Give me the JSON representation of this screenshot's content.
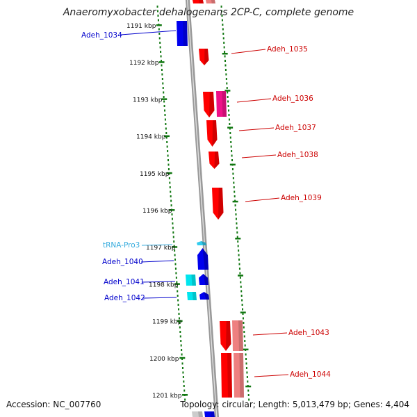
{
  "title": "Anaeromyxobacter dehalogenans 2CP-C, complete genome",
  "accession": "Accession: NC_007760",
  "topology": "Topology: circular; Length: 5,013,479 bp; Genes: 4,404",
  "colors": {
    "forward_gene": "#ff0000",
    "forward_pseudo": "#ee1188",
    "forward_light": "#ee8080",
    "reverse_gene": "#0000ee",
    "trna": "#33ccee",
    "cyan_block": "#00e5ee",
    "tick": "#117711",
    "backbone": "#999999",
    "forward_label": "#cc0000",
    "reverse_label": "#0000cc",
    "trna_label": "#33aadd"
  },
  "kbp_labels": [
    "1191 kbp",
    "1192 kbp",
    "1193 kbp",
    "1194 kbp",
    "1195 kbp",
    "1196 kbp",
    "1197 kbp",
    "1198 kbp",
    "1199 kbp",
    "1200 kbp",
    "1201 kbp"
  ],
  "genes": [
    {
      "label": "Adeh_1034",
      "strand": "reverse",
      "type": "gene"
    },
    {
      "label": "Adeh_1035",
      "strand": "forward",
      "type": "gene"
    },
    {
      "label": "Adeh_1036",
      "strand": "forward",
      "type": "gene"
    },
    {
      "label": "Adeh_1037",
      "strand": "forward",
      "type": "gene"
    },
    {
      "label": "Adeh_1038",
      "strand": "forward",
      "type": "gene"
    },
    {
      "label": "Adeh_1039",
      "strand": "forward",
      "type": "gene"
    },
    {
      "label": "tRNA-Pro3",
      "strand": "reverse",
      "type": "trna"
    },
    {
      "label": "Adeh_1040",
      "strand": "reverse",
      "type": "gene"
    },
    {
      "label": "Adeh_1041",
      "strand": "reverse",
      "type": "gene"
    },
    {
      "label": "Adeh_1042",
      "strand": "reverse",
      "type": "gene"
    },
    {
      "label": "Adeh_1043",
      "strand": "forward",
      "type": "gene"
    },
    {
      "label": "Adeh_1044",
      "strand": "forward",
      "type": "gene"
    }
  ]
}
